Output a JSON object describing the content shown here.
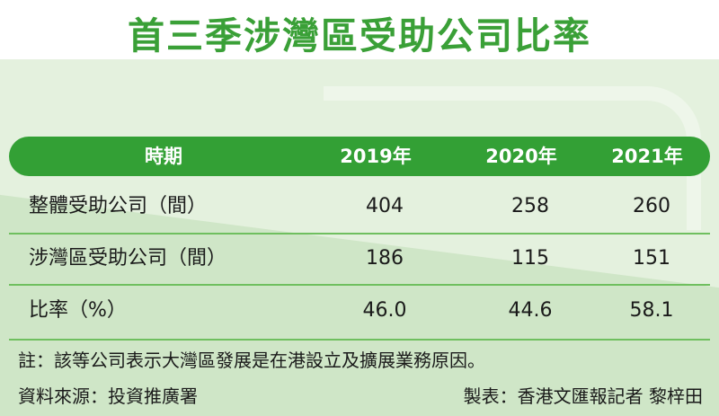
{
  "title": "首三季涉灣區受助公司比率",
  "table": {
    "headers": [
      "時期",
      "2019年",
      "2020年",
      "2021年"
    ],
    "rows": [
      {
        "label": "整體受助公司（間）",
        "values": [
          "404",
          "258",
          "260"
        ]
      },
      {
        "label": "涉灣區受助公司（間）",
        "values": [
          "186",
          "115",
          "151"
        ]
      },
      {
        "label": "比率（%）",
        "values": [
          "46.0",
          "44.6",
          "58.1"
        ]
      }
    ]
  },
  "note": "註：該等公司表示大灣區發展是在港設立及擴展業務原因。",
  "source": "資料來源：投資推廣署",
  "credit": "製表：香港文匯報記者 黎梓田",
  "colors": {
    "title_green": "#3aa037",
    "header_green": "#33a035",
    "band_light": "#e4f1de",
    "band_mid": "#cfe6c7"
  }
}
